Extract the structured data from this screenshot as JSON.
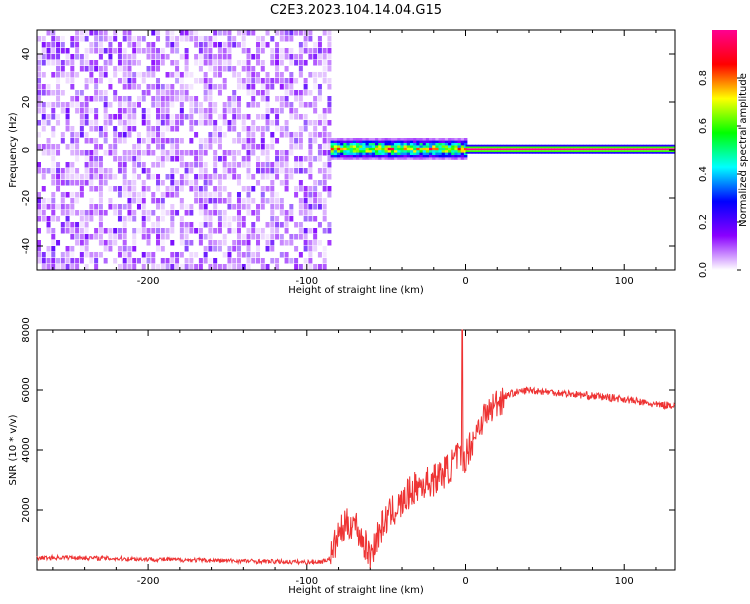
{
  "figure": {
    "title": "C2E3.2023.104.14.04.G15"
  },
  "chart_data": [
    {
      "type": "heatmap",
      "title": "C2E3.2023.104.14.04.G15",
      "xlabel": "Height of straight line (km)",
      "ylabel": "Frequency (Hz)",
      "xlim": [
        -270,
        132
      ],
      "ylim": [
        -50,
        50
      ],
      "x_ticks": [
        -200,
        -100,
        0,
        100
      ],
      "y_ticks": [
        -40,
        -20,
        0,
        20,
        40
      ],
      "noise_region_x": [
        -270,
        -85
      ],
      "signal_onset_x": -85,
      "carrier_frequency": 0,
      "colorbar": {
        "label": "Normalized spectral amplitude",
        "range": [
          0.0,
          1.0
        ],
        "ticks": [
          0.0,
          0.2,
          0.4,
          0.6,
          0.8
        ],
        "colors": [
          "#ffffff",
          "#8a00ff",
          "#0000ff",
          "#00ffff",
          "#00ff00",
          "#ffff00",
          "#ff0000",
          "#ff0090"
        ]
      }
    },
    {
      "type": "line",
      "xlabel": "Height of straight line (km)",
      "ylabel": "SNR (10 * v/v)",
      "xlim": [
        -270,
        132
      ],
      "ylim": [
        0,
        8000
      ],
      "x_ticks": [
        -200,
        -100,
        0,
        100
      ],
      "y_ticks": [
        2000,
        4000,
        6000,
        8000
      ],
      "color": "#ee3333",
      "x": [
        -270,
        -250,
        -220,
        -200,
        -180,
        -160,
        -140,
        -120,
        -100,
        -90,
        -85,
        -80,
        -75,
        -70,
        -65,
        -60,
        -55,
        -50,
        -45,
        -40,
        -35,
        -30,
        -25,
        -20,
        -15,
        -10,
        -5,
        -2,
        0,
        5,
        10,
        15,
        20,
        25,
        30,
        35,
        40,
        50,
        60,
        70,
        80,
        90,
        100,
        110,
        120,
        132
      ],
      "y": [
        400,
        420,
        380,
        360,
        340,
        320,
        300,
        280,
        260,
        280,
        400,
        1200,
        1500,
        1600,
        1000,
        500,
        1200,
        1700,
        2000,
        2200,
        2600,
        2800,
        2900,
        3000,
        3200,
        3400,
        3800,
        3600,
        3800,
        4400,
        5000,
        5300,
        5600,
        5800,
        5900,
        5950,
        6000,
        5950,
        5900,
        5850,
        5800,
        5750,
        5700,
        5600,
        5500,
        5500
      ],
      "spike": {
        "x": -2,
        "y": 8000
      }
    }
  ]
}
